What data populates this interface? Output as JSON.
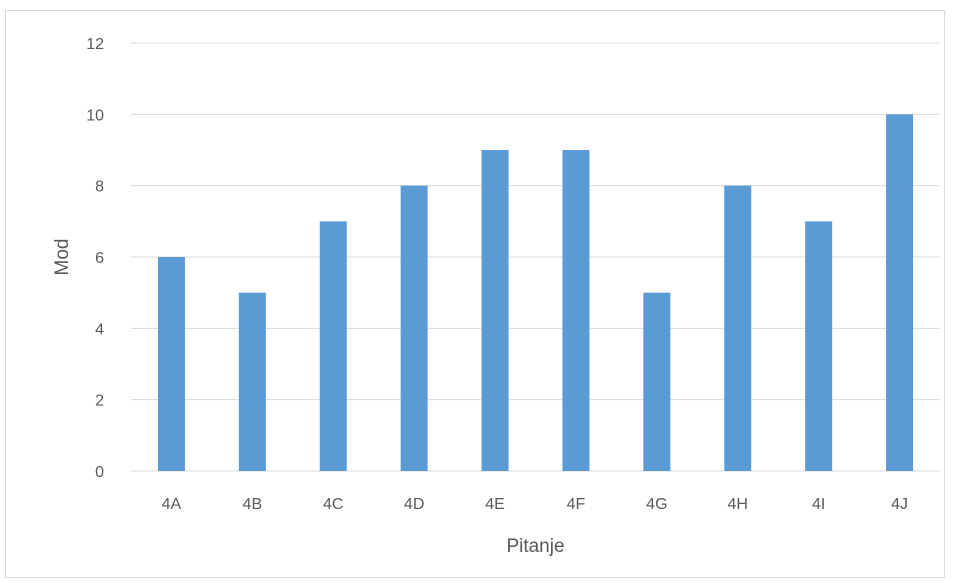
{
  "chart_data": {
    "type": "bar",
    "title": "",
    "xlabel": "Pitanje",
    "ylabel": "Mod",
    "categories": [
      "4A",
      "4B",
      "4C",
      "4D",
      "4E",
      "4F",
      "4G",
      "4H",
      "4I",
      "4J"
    ],
    "values": [
      6,
      5,
      7,
      8,
      9,
      9,
      5,
      8,
      7,
      10
    ],
    "ylim": [
      0,
      12
    ],
    "yticks": [
      "0",
      "2",
      "4",
      "6",
      "8",
      "10",
      "12"
    ],
    "grid": true,
    "legend": "none",
    "colors": {
      "bar": "#5b9bd5",
      "grid": "#d9d9d9",
      "text": "#595959"
    }
  }
}
